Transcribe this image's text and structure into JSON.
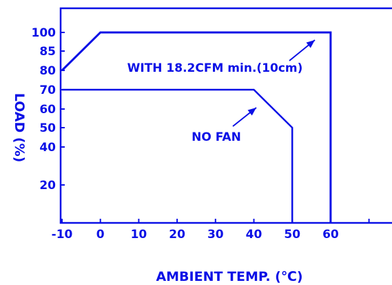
{
  "chart_data": {
    "type": "line",
    "title": "",
    "xlabel": "AMBIENT TEMP. (℃)",
    "ylabel": "LOAD (%)",
    "xlim": [
      -10,
      70
    ],
    "ylim": [
      0,
      100
    ],
    "x_ticks": [
      -10,
      0,
      10,
      20,
      30,
      40,
      50,
      60
    ],
    "x_tick_labels": [
      "-10",
      "0",
      "10",
      "20",
      "30",
      "40",
      "50",
      "60"
    ],
    "y_ticks": [
      20,
      40,
      50,
      60,
      70,
      80,
      85,
      100
    ],
    "y_tick_labels": [
      "20",
      "40",
      "50",
      "60",
      "70",
      "80",
      "85",
      "100"
    ],
    "grid": false,
    "series": [
      {
        "name": "WITH 18.2CFM min.(10cm)",
        "points": [
          [
            -10,
            80
          ],
          [
            0,
            100
          ],
          [
            60,
            100
          ],
          [
            60,
            0
          ]
        ]
      },
      {
        "name": "NO FAN",
        "points": [
          [
            -10,
            70
          ],
          [
            40,
            70
          ],
          [
            50,
            50
          ],
          [
            50,
            0
          ]
        ]
      }
    ],
    "annotations": [
      {
        "text": "WITH 18.2CFM min.(10cm)",
        "points_to_series": 0
      },
      {
        "text": "NO FAN",
        "points_to_series": 1
      }
    ],
    "colors": {
      "primary": "#0b10e6"
    }
  }
}
